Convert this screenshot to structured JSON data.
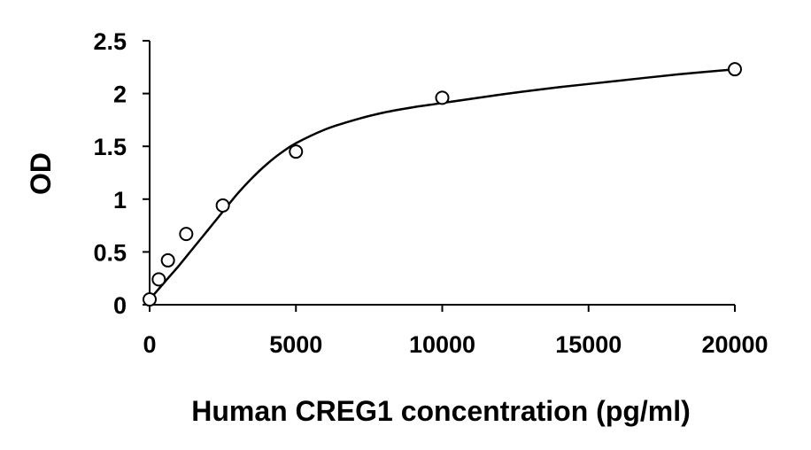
{
  "chart_data": {
    "type": "scatter",
    "title": "",
    "xlabel": "Human CREG1 concentration (pg/ml)",
    "ylabel": "OD",
    "xlim": [
      0,
      20000
    ],
    "ylim": [
      0,
      2.5
    ],
    "x_ticks": [
      0,
      5000,
      10000,
      15000,
      20000
    ],
    "y_ticks": [
      0,
      0.5,
      1,
      1.5,
      2,
      2.5
    ],
    "x_tick_labels": [
      "0",
      "5000",
      "10000",
      "15000",
      "20000"
    ],
    "y_tick_labels": [
      "0",
      "0.5",
      "1",
      "1.5",
      "2",
      "2.5"
    ],
    "grid": false,
    "legend": "none",
    "series": [
      {
        "marker": "open-circle",
        "x": [
          0,
          312.5,
          625,
          1250,
          2500,
          5000,
          10000,
          20000
        ],
        "y": [
          0.05,
          0.24,
          0.42,
          0.67,
          0.94,
          1.45,
          1.96,
          2.23
        ]
      }
    ],
    "fit_curve": {
      "x": [
        0,
        500,
        1000,
        1500,
        2000,
        2500,
        3000,
        3500,
        4000,
        4500,
        5000,
        6000,
        7000,
        8000,
        9000,
        10000,
        12000,
        14000,
        16000,
        18000,
        20000
      ],
      "y": [
        0.05,
        0.21,
        0.37,
        0.54,
        0.71,
        0.88,
        1.05,
        1.2,
        1.33,
        1.44,
        1.53,
        1.66,
        1.75,
        1.82,
        1.87,
        1.91,
        1.99,
        2.06,
        2.12,
        2.18,
        2.23
      ]
    },
    "colors": {
      "line": "#000000",
      "marker_stroke": "#000000",
      "marker_fill": "#ffffff"
    }
  }
}
